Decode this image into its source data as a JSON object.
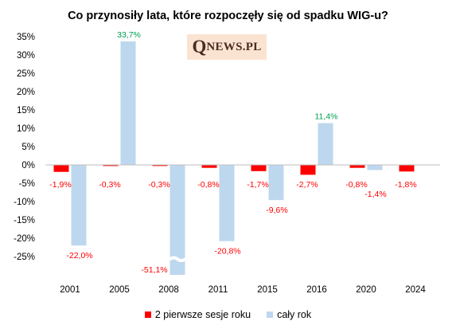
{
  "chart_data": {
    "type": "bar",
    "title": "Co przynosiły lata, które rozpoczęły się od spadku WIG-u?",
    "categories": [
      "2001",
      "2005",
      "2008",
      "2011",
      "2015",
      "2016",
      "2020",
      "2024"
    ],
    "series": [
      {
        "name": "2 pierwsze sesje roku",
        "color": "#ff0000",
        "values": [
          -1.9,
          -0.3,
          -0.3,
          -0.8,
          -1.7,
          -2.7,
          -0.8,
          -1.8
        ],
        "labels": [
          "-1,9%",
          "-0,3%",
          "-0,3%",
          "-0,8%",
          "-1,7%",
          "-2,7%",
          "-0,8%",
          "-1,8%"
        ]
      },
      {
        "name": "cały rok",
        "color": "#bdd7ee",
        "values": [
          -22.0,
          33.7,
          -51.1,
          -20.8,
          -9.6,
          11.4,
          -1.4,
          null
        ],
        "labels": [
          "-22,0%",
          "33,7%",
          "-51,1%",
          "-20,8%",
          "-9,6%",
          "11,4%",
          "-1,4%",
          null
        ]
      }
    ],
    "yticks": [
      "35%",
      "30%",
      "25%",
      "20%",
      "15%",
      "10%",
      "5%",
      "0%",
      "-5%",
      "-10%",
      "-15%",
      "-20%",
      "-25%"
    ],
    "ylim": [
      -30,
      35
    ],
    "axis_break": {
      "category": "2008",
      "series": "cały rok"
    },
    "label_colors": {
      "negative": "#ff0000",
      "positive": "#00a050"
    },
    "legend_position": "bottom",
    "grid": false
  },
  "brand": {
    "initial": "Q",
    "rest": "NEWS.PL"
  }
}
